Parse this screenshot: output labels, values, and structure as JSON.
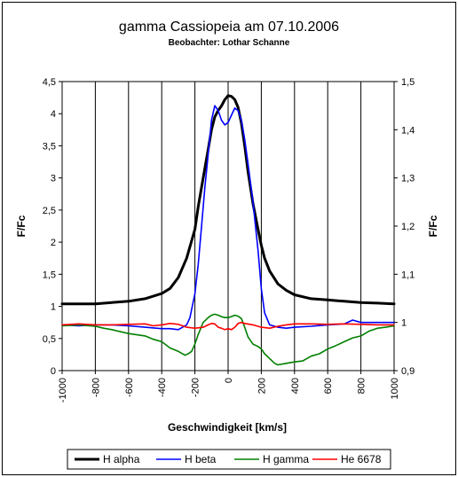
{
  "chart_data": {
    "type": "line",
    "title": "gamma Cassiopeia am 07.10.2006",
    "subtitle": "Beobachter: Lothar Schanne",
    "xlabel": "Geschwindigkeit [km/s]",
    "ylabel": "F/Fc",
    "y2label": "F/Fc",
    "xlim": [
      -1000,
      1000
    ],
    "ylim": [
      0,
      4.5
    ],
    "y2lim": [
      0.9,
      1.5
    ],
    "x_ticks": [
      "-1000",
      "-800",
      "-600",
      "-400",
      "-200",
      "0",
      "200",
      "400",
      "600",
      "800",
      "1000"
    ],
    "y_ticks": [
      "0",
      "0,5",
      "1",
      "1,5",
      "2",
      "2,5",
      "3",
      "3,5",
      "4",
      "4,5"
    ],
    "y2_ticks": [
      "0,9",
      "1",
      "1,1",
      "1,2",
      "1,3",
      "1,4",
      "1,5"
    ],
    "grid": "vertical",
    "legend_position": "bottom",
    "series": [
      {
        "name": "H alpha",
        "color": "#000000",
        "axis": "left",
        "x": [
          -1000,
          -900,
          -800,
          -700,
          -600,
          -500,
          -400,
          -350,
          -300,
          -250,
          -200,
          -180,
          -150,
          -120,
          -100,
          -80,
          -60,
          -40,
          -20,
          0,
          20,
          40,
          60,
          80,
          100,
          120,
          150,
          180,
          200,
          220,
          250,
          300,
          350,
          400,
          500,
          600,
          700,
          800,
          900,
          1000
        ],
        "y": [
          1.04,
          1.04,
          1.04,
          1.06,
          1.08,
          1.12,
          1.2,
          1.28,
          1.45,
          1.75,
          2.2,
          2.55,
          3.0,
          3.45,
          3.75,
          3.95,
          4.05,
          4.12,
          4.22,
          4.28,
          4.27,
          4.22,
          4.1,
          3.85,
          3.5,
          3.1,
          2.6,
          2.2,
          1.95,
          1.75,
          1.55,
          1.35,
          1.25,
          1.18,
          1.12,
          1.1,
          1.08,
          1.06,
          1.05,
          1.04
        ]
      },
      {
        "name": "H beta",
        "color": "#0000ff",
        "axis": "right",
        "x": [
          -1000,
          -900,
          -800,
          -700,
          -600,
          -500,
          -400,
          -350,
          -300,
          -250,
          -230,
          -200,
          -180,
          -160,
          -140,
          -120,
          -100,
          -80,
          -60,
          -40,
          -20,
          0,
          20,
          40,
          60,
          80,
          100,
          120,
          150,
          180,
          200,
          220,
          250,
          300,
          350,
          400,
          500,
          600,
          700,
          750,
          800,
          900,
          1000
        ],
        "y": [
          0.995,
          0.993,
          0.995,
          0.995,
          0.993,
          0.99,
          0.987,
          0.987,
          0.985,
          0.995,
          1.01,
          1.06,
          1.12,
          1.2,
          1.28,
          1.35,
          1.42,
          1.45,
          1.44,
          1.42,
          1.41,
          1.415,
          1.43,
          1.445,
          1.44,
          1.42,
          1.38,
          1.33,
          1.25,
          1.15,
          1.07,
          1.02,
          0.995,
          0.99,
          0.988,
          0.99,
          0.992,
          0.995,
          0.997,
          1.005,
          1.0,
          1.0,
          1.0
        ]
      },
      {
        "name": "H gamma",
        "color": "#008000",
        "axis": "right",
        "x": [
          -1000,
          -900,
          -800,
          -750,
          -700,
          -600,
          -500,
          -450,
          -400,
          -350,
          -300,
          -280,
          -260,
          -240,
          -220,
          -200,
          -180,
          -150,
          -120,
          -100,
          -80,
          -60,
          -40,
          -20,
          0,
          20,
          40,
          60,
          80,
          100,
          120,
          150,
          180,
          200,
          220,
          250,
          280,
          300,
          350,
          400,
          450,
          500,
          550,
          600,
          650,
          700,
          750,
          800,
          850,
          900,
          950,
          1000
        ],
        "y": [
          0.993,
          0.995,
          0.992,
          0.988,
          0.985,
          0.977,
          0.972,
          0.965,
          0.96,
          0.947,
          0.94,
          0.936,
          0.932,
          0.935,
          0.94,
          0.955,
          0.975,
          1.0,
          1.01,
          1.015,
          1.017,
          1.015,
          1.012,
          1.01,
          1.01,
          1.012,
          1.015,
          1.013,
          1.008,
          0.99,
          0.97,
          0.955,
          0.95,
          0.945,
          0.935,
          0.925,
          0.915,
          0.912,
          0.915,
          0.918,
          0.92,
          0.93,
          0.935,
          0.945,
          0.952,
          0.96,
          0.968,
          0.972,
          0.982,
          0.988,
          0.99,
          0.993
        ]
      },
      {
        "name": "He 6678",
        "color": "#ff0000",
        "axis": "right",
        "x": [
          -1000,
          -900,
          -800,
          -700,
          -600,
          -500,
          -450,
          -400,
          -350,
          -300,
          -250,
          -200,
          -150,
          -120,
          -100,
          -80,
          -60,
          -40,
          -20,
          0,
          20,
          40,
          60,
          80,
          100,
          150,
          200,
          250,
          300,
          350,
          400,
          500,
          600,
          700,
          800,
          900,
          1000
        ],
        "y": [
          0.995,
          0.997,
          0.995,
          0.995,
          0.996,
          0.997,
          0.993,
          0.995,
          0.998,
          0.996,
          0.99,
          0.988,
          0.99,
          0.995,
          0.998,
          0.997,
          0.99,
          0.988,
          0.985,
          0.987,
          0.985,
          0.99,
          0.998,
          1.0,
          0.998,
          0.995,
          0.99,
          0.988,
          0.992,
          0.995,
          0.997,
          0.997,
          0.996,
          0.997,
          0.996,
          0.995,
          0.995
        ]
      }
    ]
  }
}
